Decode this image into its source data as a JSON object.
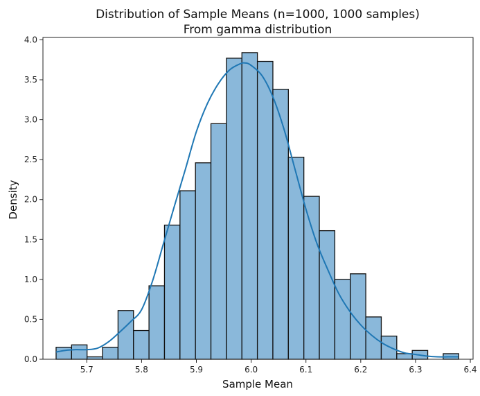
{
  "chart_data": {
    "type": "bar",
    "title": "Distribution of Sample Means (n=1000, 1000 samples)",
    "subtitle": "From gamma distribution",
    "xlabel": "Sample Mean",
    "ylabel": "Density",
    "xlim": [
      5.62,
      6.405
    ],
    "ylim": [
      0,
      4.03
    ],
    "xticks": [
      "5.7",
      "5.8",
      "5.9",
      "6.0",
      "6.1",
      "6.2",
      "6.3",
      "6.4"
    ],
    "xtick_values": [
      5.7,
      5.8,
      5.9,
      6.0,
      6.1,
      6.2,
      6.3,
      6.4
    ],
    "yticks": [
      "0.0",
      "0.5",
      "1.0",
      "1.5",
      "2.0",
      "2.5",
      "3.0",
      "3.5",
      "4.0"
    ],
    "ytick_values": [
      0.0,
      0.5,
      1.0,
      1.5,
      2.0,
      2.5,
      3.0,
      3.5,
      4.0
    ],
    "bin_start": 5.644,
    "bin_width": 0.02826,
    "bin_densities": [
      0.15,
      0.18,
      0.03,
      0.15,
      0.61,
      0.36,
      0.92,
      1.68,
      2.11,
      2.46,
      2.95,
      3.77,
      3.84,
      3.73,
      3.38,
      2.53,
      2.04,
      1.61,
      1.0,
      1.07,
      0.53,
      0.29,
      0.07,
      0.11,
      0.0,
      0.07
    ],
    "kde": {
      "x": [
        5.644,
        5.66,
        5.68,
        5.7,
        5.72,
        5.74,
        5.76,
        5.78,
        5.8,
        5.82,
        5.84,
        5.86,
        5.88,
        5.9,
        5.92,
        5.94,
        5.96,
        5.98,
        5.99,
        6.0,
        6.02,
        6.04,
        6.06,
        6.08,
        6.1,
        6.12,
        6.14,
        6.16,
        6.18,
        6.2,
        6.22,
        6.24,
        6.26,
        6.28,
        6.3,
        6.32,
        6.34,
        6.36,
        6.378
      ],
      "y": [
        0.09,
        0.11,
        0.12,
        0.12,
        0.14,
        0.22,
        0.34,
        0.47,
        0.62,
        0.98,
        1.45,
        1.92,
        2.38,
        2.85,
        3.2,
        3.45,
        3.62,
        3.7,
        3.71,
        3.68,
        3.55,
        3.28,
        2.88,
        2.38,
        1.88,
        1.45,
        1.12,
        0.82,
        0.6,
        0.43,
        0.3,
        0.2,
        0.13,
        0.08,
        0.06,
        0.04,
        0.03,
        0.03,
        0.03
      ]
    },
    "grid": false,
    "legend": "none",
    "bar_color": "#8ab8da",
    "line_color": "#1f77b4"
  }
}
